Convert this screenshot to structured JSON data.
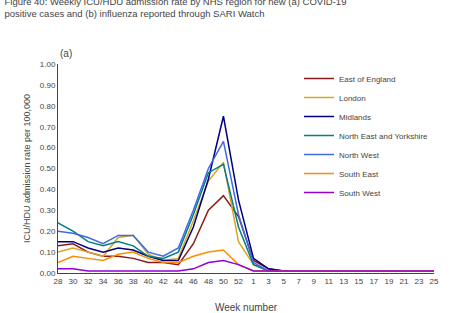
{
  "chart_data": {
    "type": "line",
    "title": "Figure 40: Weekly ICU/HDU admission rate by NHS region for new (a) COVID-19\npositive cases and (b) influenza reported through SARI Watch",
    "subtitle": "(a)",
    "xlabel": "Week number",
    "ylabel": "ICU/HDU admission rate per 100,000",
    "categories": [
      "28",
      "30",
      "32",
      "34",
      "36",
      "38",
      "40",
      "42",
      "44",
      "46",
      "48",
      "50",
      "52",
      "1",
      "3",
      "5",
      "7",
      "9",
      "11",
      "13",
      "15",
      "17",
      "19",
      "21",
      "23",
      "25"
    ],
    "series": [
      {
        "name": "East of England",
        "color": "#8B1A1A",
        "values": [
          0.13,
          0.14,
          0.1,
          0.08,
          0.08,
          0.07,
          0.05,
          0.05,
          0.04,
          0.14,
          0.3,
          0.37,
          0.27,
          0.06,
          0.02,
          0.01,
          0.01,
          0.01,
          0.01,
          0.01,
          0.01,
          0.01,
          0.01,
          0.01,
          0.01,
          0.01
        ]
      },
      {
        "name": "London",
        "color": "#DAA520",
        "values": [
          0.1,
          0.12,
          0.1,
          0.08,
          0.17,
          0.18,
          0.09,
          0.06,
          0.07,
          0.25,
          0.44,
          0.53,
          0.15,
          0.04,
          0.01,
          0.01,
          0.01,
          0.01,
          0.01,
          0.01,
          0.01,
          0.01,
          0.01,
          0.01,
          0.01,
          0.01
        ]
      },
      {
        "name": "Midlands",
        "color": "#000080",
        "values": [
          0.15,
          0.15,
          0.12,
          0.1,
          0.12,
          0.11,
          0.08,
          0.06,
          0.06,
          0.22,
          0.45,
          0.75,
          0.35,
          0.07,
          0.02,
          0.01,
          0.01,
          0.01,
          0.01,
          0.01,
          0.01,
          0.01,
          0.01,
          0.01,
          0.01,
          0.01
        ]
      },
      {
        "name": "North East and Yorkshire",
        "color": "#008080",
        "values": [
          0.24,
          0.2,
          0.15,
          0.13,
          0.15,
          0.13,
          0.08,
          0.07,
          0.1,
          0.28,
          0.48,
          0.52,
          0.22,
          0.04,
          0.01,
          0.01,
          0.01,
          0.01,
          0.01,
          0.01,
          0.01,
          0.01,
          0.01,
          0.01,
          0.01,
          0.01
        ]
      },
      {
        "name": "North West",
        "color": "#4169E1",
        "values": [
          0.2,
          0.19,
          0.17,
          0.14,
          0.18,
          0.18,
          0.1,
          0.08,
          0.12,
          0.3,
          0.5,
          0.63,
          0.28,
          0.05,
          0.01,
          0.01,
          0.01,
          0.01,
          0.01,
          0.01,
          0.01,
          0.01,
          0.01,
          0.01,
          0.01,
          0.01
        ]
      },
      {
        "name": "South East",
        "color": "#FF8C00",
        "values": [
          0.05,
          0.08,
          0.07,
          0.06,
          0.09,
          0.1,
          0.07,
          0.05,
          0.05,
          0.08,
          0.1,
          0.11,
          0.04,
          0.01,
          0.01,
          0.01,
          0.01,
          0.01,
          0.01,
          0.01,
          0.01,
          0.01,
          0.01,
          0.01,
          0.01,
          0.01
        ]
      },
      {
        "name": "South West",
        "color": "#9400D3",
        "values": [
          0.02,
          0.02,
          0.01,
          0.01,
          0.01,
          0.01,
          0.01,
          0.01,
          0.01,
          0.02,
          0.05,
          0.06,
          0.04,
          0.01,
          0.01,
          0.01,
          0.01,
          0.01,
          0.01,
          0.01,
          0.01,
          0.01,
          0.01,
          0.01,
          0.01,
          0.01
        ]
      }
    ],
    "ylim": [
      0,
      1.0
    ],
    "yticks": [
      {
        "value": 0.0,
        "label": "0.00"
      },
      {
        "value": 0.1,
        "label": "0.10"
      },
      {
        "value": 0.2,
        "label": "0.20"
      },
      {
        "value": 0.3,
        "label": "0.30"
      },
      {
        "value": 0.4,
        "label": "0.40"
      },
      {
        "value": 0.5,
        "label": "0.50"
      },
      {
        "value": 0.6,
        "label": "0.60"
      },
      {
        "value": 0.7,
        "label": "0.70"
      },
      {
        "value": 0.8,
        "label": "0.80"
      },
      {
        "value": 0.9,
        "label": "0.90"
      },
      {
        "value": 1.0,
        "label": "1.00"
      }
    ],
    "grid": false,
    "legend": "upper right"
  }
}
